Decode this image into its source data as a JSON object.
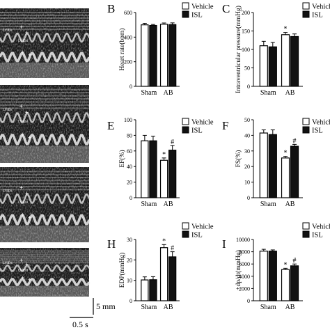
{
  "echo_panels": [
    {
      "labels": [
        "LVIDd",
        "LVIDs"
      ]
    },
    {
      "labels": [
        "LVIDd",
        "LVIDs"
      ]
    },
    {
      "labels": [
        "LVIDd",
        "LVIDs"
      ]
    },
    {
      "labels": [
        "LVIDd",
        "LVIDs"
      ]
    }
  ],
  "scale_bar": {
    "vertical": "5 mm",
    "horizontal": "0.5 s"
  },
  "colors": {
    "vehicle": "#ffffff",
    "isl": "#111111",
    "axis": "#000000"
  },
  "chart_data": [
    {
      "panel": "B",
      "type": "bar",
      "categories": [
        "Sham",
        "AB"
      ],
      "ylabel": "Heart rate(bpm)",
      "ylim": [
        0,
        600
      ],
      "yticks": [
        0,
        200,
        400,
        600
      ],
      "legend": "top-right",
      "series": [
        {
          "name": "Vehicle",
          "values": [
            500,
            505
          ],
          "errors": [
            12,
            10
          ],
          "sig": [
            "",
            ""
          ]
        },
        {
          "name": "ISL",
          "values": [
            495,
            502
          ],
          "errors": [
            8,
            14
          ],
          "sig": [
            "",
            ""
          ]
        }
      ]
    },
    {
      "panel": "C",
      "type": "bar",
      "categories": [
        "Sham",
        "AB"
      ],
      "ylabel": "Intraventricular pressure(mmHg)",
      "ylim": [
        0,
        200
      ],
      "yticks": [
        0,
        50,
        100,
        150,
        200
      ],
      "legend": "top-right",
      "series": [
        {
          "name": "Vehicle",
          "values": [
            110,
            140
          ],
          "errors": [
            12,
            6
          ],
          "sig": [
            "",
            "*"
          ]
        },
        {
          "name": "ISL",
          "values": [
            107,
            135
          ],
          "errors": [
            12,
            7
          ],
          "sig": [
            "",
            ""
          ]
        }
      ]
    },
    {
      "panel": "E",
      "type": "bar",
      "categories": [
        "Sham",
        "AB"
      ],
      "ylabel": "EF(%)",
      "ylim": [
        0,
        100
      ],
      "yticks": [
        0,
        20,
        40,
        60,
        80,
        100
      ],
      "legend": "top-right",
      "series": [
        {
          "name": "Vehicle",
          "values": [
            73,
            48
          ],
          "errors": [
            7,
            3
          ],
          "sig": [
            "",
            "*"
          ]
        },
        {
          "name": "ISL",
          "values": [
            73,
            61
          ],
          "errors": [
            6,
            6
          ],
          "sig": [
            "",
            "#"
          ]
        }
      ]
    },
    {
      "panel": "F",
      "type": "bar",
      "categories": [
        "Sham",
        "AB"
      ],
      "ylabel": "FS(%)",
      "ylim": [
        0,
        50
      ],
      "yticks": [
        0,
        10,
        20,
        30,
        40,
        50
      ],
      "legend": "top-right",
      "series": [
        {
          "name": "Vehicle",
          "values": [
            41.5,
            25.5
          ],
          "errors": [
            2,
            1
          ],
          "sig": [
            "",
            "*"
          ]
        },
        {
          "name": "ISL",
          "values": [
            40.5,
            33
          ],
          "errors": [
            3,
            1.2
          ],
          "sig": [
            "",
            "#"
          ]
        }
      ]
    },
    {
      "panel": "H",
      "type": "bar",
      "categories": [
        "Sham",
        "AB"
      ],
      "ylabel": "EDP(mmHg)",
      "ylim": [
        0,
        30
      ],
      "yticks": [
        0,
        10,
        20,
        30
      ],
      "legend": "top-right",
      "series": [
        {
          "name": "Vehicle",
          "values": [
            10.2,
            26
          ],
          "errors": [
            1.5,
            1.5
          ],
          "sig": [
            "",
            "*"
          ]
        },
        {
          "name": "ISL",
          "values": [
            10.3,
            21.5
          ],
          "errors": [
            1.5,
            2.5
          ],
          "sig": [
            "",
            "#"
          ]
        }
      ]
    },
    {
      "panel": "I",
      "type": "bar",
      "categories": [
        "Sham",
        "AB"
      ],
      "ylabel": "+dp/dt(mmHg)",
      "ylim": [
        0,
        10000
      ],
      "yticks": [
        0,
        2000,
        4000,
        6000,
        8000,
        10000
      ],
      "legend": "top-right",
      "series": [
        {
          "name": "Vehicle",
          "values": [
            8100,
            5100
          ],
          "errors": [
            300,
            200
          ],
          "sig": [
            "",
            "*"
          ]
        },
        {
          "name": "ISL",
          "values": [
            8100,
            5700
          ],
          "errors": [
            200,
            300
          ],
          "sig": [
            "",
            "#"
          ]
        }
      ]
    }
  ]
}
